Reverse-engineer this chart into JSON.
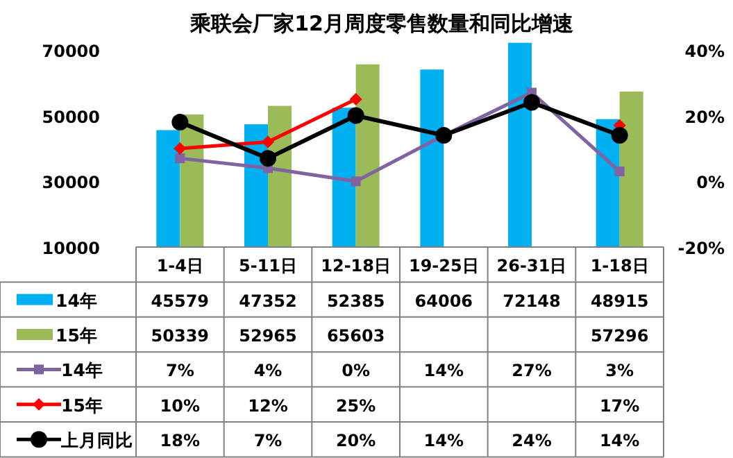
{
  "chart_data": {
    "type": "bar",
    "title": "乘联会厂家12月周度零售数量和同比增速",
    "categories": [
      "1-4日",
      "5-11日",
      "12-18日",
      "19-25日",
      "26-31日",
      "1-18日"
    ],
    "series": [
      {
        "name": "14年",
        "color": "#00b0f0",
        "values": [
          45579,
          47352,
          52385,
          64006,
          72148,
          48915
        ],
        "value_labels": [
          "45579",
          "47352",
          "52385",
          "64006",
          "72148",
          "48915"
        ]
      },
      {
        "name": "15年",
        "color": "#9bbb59",
        "values": [
          50339,
          52965,
          65603,
          null,
          null,
          57296
        ],
        "value_labels": [
          "50339",
          "52965",
          "65603",
          null,
          null,
          "57296"
        ]
      },
      {
        "name": "14年",
        "type": "line",
        "axis": "y2",
        "color": "#8064a2",
        "marker": "square",
        "values": [
          7,
          4,
          0,
          14,
          27,
          3
        ],
        "value_labels": [
          "7%",
          "4%",
          "0%",
          "14%",
          "27%",
          "3%"
        ]
      },
      {
        "name": "15年",
        "type": "line",
        "axis": "y2",
        "color": "#ff0000",
        "marker": "diamond",
        "values": [
          10,
          12,
          25,
          null,
          null,
          17
        ],
        "value_labels": [
          "10%",
          "12%",
          "25%",
          null,
          null,
          "17%"
        ]
      },
      {
        "name": "上月同比",
        "type": "line",
        "axis": "y2",
        "color": "#000000",
        "marker": "circle",
        "values": [
          18,
          7,
          20,
          14,
          24,
          14
        ],
        "value_labels": [
          "18%",
          "7%",
          "20%",
          "14%",
          "24%",
          "14%"
        ]
      }
    ],
    "ylim": [
      10000,
      72500
    ],
    "yticks": [
      10000,
      30000,
      50000,
      70000
    ],
    "y2lim": [
      -20,
      42.5
    ],
    "y2ticks": [
      {
        "value": -20,
        "label": "-20%"
      },
      {
        "value": 0,
        "label": "0%"
      },
      {
        "value": 20,
        "label": "20%"
      },
      {
        "value": 40,
        "label": "40%"
      }
    ],
    "legend": "bottom",
    "line_style": "solid"
  }
}
